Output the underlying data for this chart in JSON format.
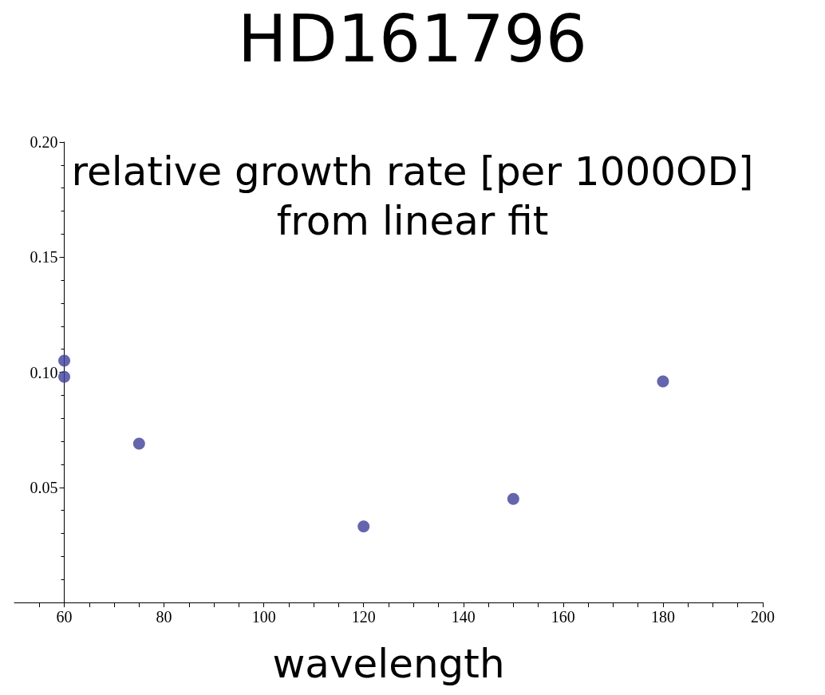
{
  "chart_data": {
    "type": "scatter",
    "title": "HD161796",
    "xlabel": "wavelength",
    "ylabel": "relative growth rate [per 1000OD]\nfrom linear fit",
    "x": [
      60,
      60,
      75,
      120,
      150,
      180
    ],
    "values": [
      0.105,
      0.098,
      0.069,
      0.033,
      0.045,
      0.096
    ],
    "color": "#3e3e9a",
    "marker": "circle",
    "grid": false,
    "xlim": [
      50,
      200
    ],
    "ylim": [
      0,
      0.2
    ],
    "xticks": [
      60,
      {
        "value": 55,
        "label": null
      },
      {
        "value": 65,
        "label": null
      },
      {
        "value": 70,
        "label": null
      },
      {
        "value": 75,
        "label": null
      },
      80,
      {
        "value": 85,
        "label": null
      },
      {
        "value": 90,
        "label": null
      },
      {
        "value": 95,
        "label": null
      },
      100,
      {
        "value": 105,
        "label": null
      },
      {
        "value": 110,
        "label": null
      },
      {
        "value": 115,
        "label": null
      },
      120,
      {
        "value": 125,
        "label": null
      },
      {
        "value": 130,
        "label": null
      },
      {
        "value": 135,
        "label": null
      },
      140,
      {
        "value": 145,
        "label": null
      },
      {
        "value": 150,
        "label": null
      },
      {
        "value": 155,
        "label": null
      },
      160,
      {
        "value": 165,
        "label": null
      },
      {
        "value": 170,
        "label": null
      },
      {
        "value": 175,
        "label": null
      },
      180,
      {
        "value": 185,
        "label": null
      },
      {
        "value": 190,
        "label": null
      },
      {
        "value": 195,
        "label": null
      },
      200
    ],
    "yticks": [
      0.05,
      {
        "value": 0.1,
        "label": "0.10"
      },
      0.15,
      {
        "value": 0.2,
        "label": "0.20"
      }
    ]
  }
}
